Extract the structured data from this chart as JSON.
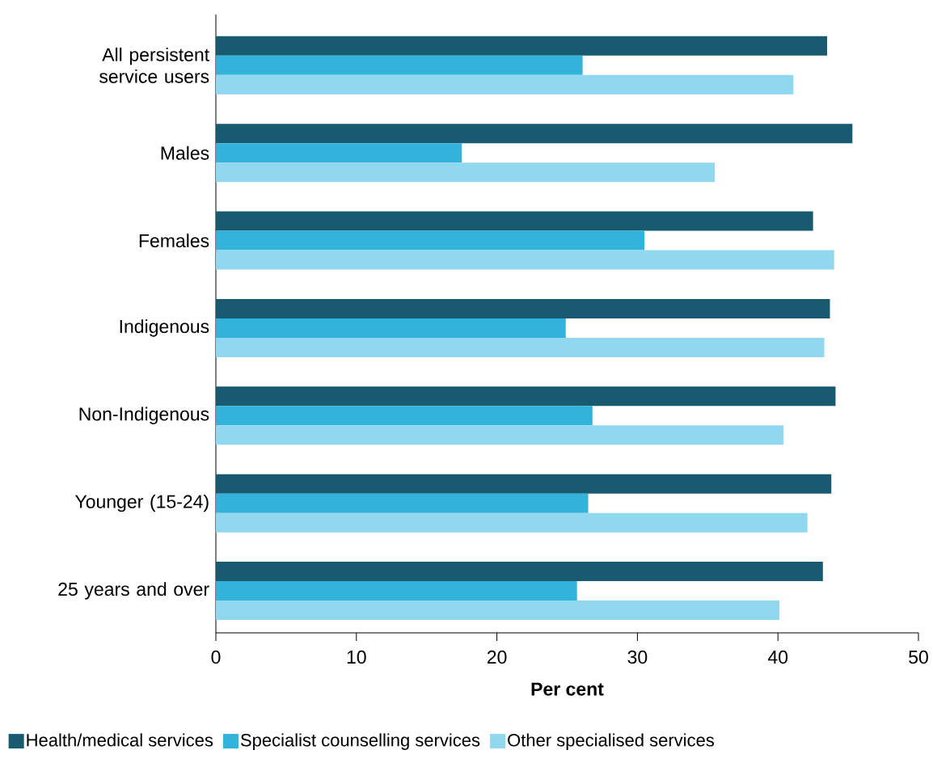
{
  "chart_data": {
    "type": "bar",
    "orientation": "horizontal",
    "xlabel": "Per cent",
    "categories": [
      "All persistent service users",
      "Males",
      "Females",
      "Indigenous",
      "Non-Indigenous",
      "Younger (15-24)",
      "25 years and over"
    ],
    "series": [
      {
        "name": "Health/medical services",
        "color": "#185b70",
        "values": [
          43.5,
          45.3,
          42.5,
          43.7,
          44.1,
          43.8,
          43.2
        ]
      },
      {
        "name": "Specialist counselling services",
        "color": "#31b3db",
        "values": [
          26.1,
          17.5,
          30.5,
          24.9,
          26.8,
          26.5,
          25.7
        ]
      },
      {
        "name": "Other specialised services",
        "color": "#90d8ef",
        "values": [
          41.1,
          35.5,
          44.0,
          43.3,
          40.4,
          42.1,
          40.1
        ]
      }
    ],
    "xlim": [
      0,
      50
    ],
    "xticks": [
      0,
      10,
      20,
      30,
      40,
      50
    ],
    "grid": false,
    "legend": "bottom"
  }
}
